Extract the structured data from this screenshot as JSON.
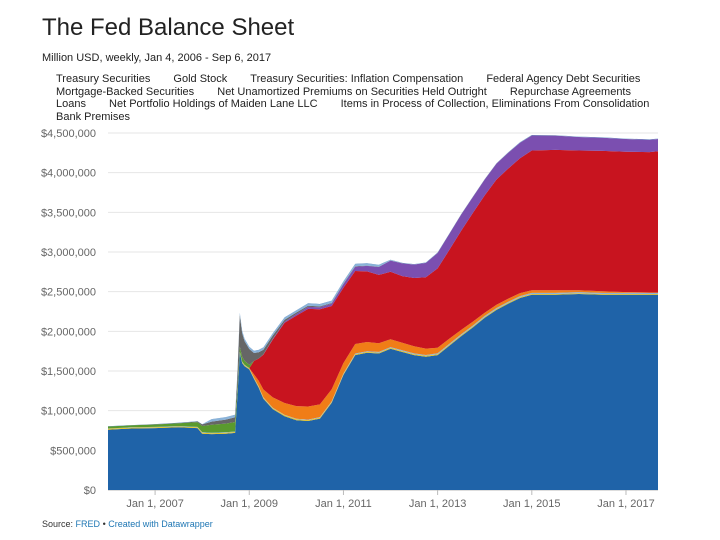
{
  "header": {
    "title": "The Fed Balance Sheet",
    "subtitle": "Million USD, weekly, Jan 4, 2006 - Sep 6, 2017"
  },
  "legend": {
    "rows": [
      [
        "Treasury Securities",
        "Gold Stock",
        "Treasury Securities: Inflation Compensation",
        "Federal Agency Debt Securities"
      ],
      [
        "Mortgage-Backed Securities",
        "Net Unamortized Premiums on Securities Held Outright",
        "Repurchase Agreements"
      ],
      [
        "Loans",
        "Net Portfolio Holdings of Maiden Lane LLC",
        "Items in Process of Collection, Eliminations From Consolidation"
      ],
      [
        "Bank Premises"
      ]
    ]
  },
  "footer": {
    "source_label": "Source:",
    "source_name": "FRED",
    "separator": "•",
    "credit": "Created with Datawrapper"
  },
  "colors": {
    "treasury": "#1f63a8",
    "gold": "#e8c21a",
    "agency": "#f07d17",
    "mbs": "#c8141f",
    "premiums": "#7b4fb0",
    "repo": "#5a9a2e",
    "loans": "#666666",
    "maiden_lane": "#8ab3d9",
    "grid": "#e6e6e6"
  },
  "chart_data": {
    "type": "area",
    "stacked": true,
    "title": "The Fed Balance Sheet",
    "subtitle": "Million USD, weekly, Jan 4, 2006 - Sep 6, 2017",
    "xlabel": "",
    "ylabel": "",
    "xlim": [
      2006.0,
      2017.68
    ],
    "ylim": [
      0,
      4500000
    ],
    "yticks": [
      0,
      500000,
      1000000,
      1500000,
      2000000,
      2500000,
      3000000,
      3500000,
      4000000,
      4500000
    ],
    "ytick_labels": [
      "$0",
      "$500,000",
      "$1,000,000",
      "$1,500,000",
      "$2,000,000",
      "$2,500,000",
      "$3,000,000",
      "$3,500,000",
      "$4,000,000",
      "$4,500,000"
    ],
    "xticks": [
      2007.0,
      2009.0,
      2011.0,
      2013.0,
      2015.0,
      2017.0
    ],
    "xtick_labels": [
      "Jan 1, 2007",
      "Jan 1, 2009",
      "Jan 1, 2011",
      "Jan 1, 2013",
      "Jan 1, 2015",
      "Jan 1, 2017"
    ],
    "grid": true,
    "legend_position": "top",
    "x": [
      2006.0,
      2006.5,
      2007.0,
      2007.5,
      2007.9,
      2008.0,
      2008.2,
      2008.5,
      2008.7,
      2008.75,
      2008.8,
      2008.85,
      2008.9,
      2009.0,
      2009.1,
      2009.2,
      2009.3,
      2009.5,
      2009.75,
      2010.0,
      2010.25,
      2010.5,
      2010.75,
      2011.0,
      2011.25,
      2011.5,
      2011.75,
      2012.0,
      2012.25,
      2012.5,
      2012.75,
      2013.0,
      2013.25,
      2013.5,
      2013.75,
      2014.0,
      2014.25,
      2014.5,
      2014.75,
      2015.0,
      2015.5,
      2016.0,
      2016.5,
      2017.0,
      2017.5,
      2017.68
    ],
    "series": [
      {
        "name": "Treasury Securities",
        "color_key": "treasury",
        "values": [
          760000,
          775000,
          780000,
          790000,
          780000,
          710000,
          705000,
          710000,
          720000,
          1200000,
          1730000,
          1600000,
          1560000,
          1520000,
          1400000,
          1290000,
          1150000,
          1020000,
          930000,
          880000,
          870000,
          900000,
          1100000,
          1450000,
          1700000,
          1730000,
          1720000,
          1780000,
          1740000,
          1700000,
          1680000,
          1700000,
          1820000,
          1940000,
          2050000,
          2170000,
          2270000,
          2350000,
          2420000,
          2460000,
          2460000,
          2470000,
          2460000,
          2460000,
          2460000,
          2460000
        ]
      },
      {
        "name": "Gold Stock",
        "color_key": "gold",
        "values": [
          11000,
          11000,
          11000,
          11000,
          11000,
          11000,
          11000,
          11000,
          11000,
          11000,
          11000,
          11000,
          11000,
          11000,
          11000,
          11000,
          11000,
          11000,
          11000,
          11000,
          11000,
          11000,
          11000,
          11000,
          11000,
          11000,
          11000,
          11000,
          11000,
          11000,
          11000,
          11000,
          11000,
          11000,
          11000,
          11000,
          11000,
          11000,
          11000,
          11000,
          11000,
          11000,
          11000,
          11000,
          11000,
          11000
        ]
      },
      {
        "name": "Treasury Securities: Inflation Compensation",
        "color_key": "maiden_lane",
        "values": [
          4000,
          4000,
          5000,
          5000,
          5000,
          6000,
          6000,
          6000,
          6000,
          6000,
          6000,
          6000,
          6000,
          6000,
          6000,
          6000,
          6000,
          6000,
          6000,
          7000,
          7000,
          8000,
          8000,
          8000,
          9000,
          9000,
          10000,
          10000,
          10000,
          11000,
          11000,
          12000,
          12000,
          12000,
          12000,
          13000,
          13000,
          13000,
          13000,
          13000,
          13000,
          13000,
          13000,
          13000,
          13000,
          13000
        ]
      },
      {
        "name": "Federal Agency Debt Securities",
        "color_key": "agency",
        "values": [
          0,
          0,
          0,
          0,
          0,
          0,
          0,
          0,
          0,
          0,
          0,
          0,
          0,
          0,
          40000,
          70000,
          100000,
          130000,
          150000,
          160000,
          165000,
          160000,
          150000,
          130000,
          120000,
          115000,
          110000,
          100000,
          95000,
          90000,
          80000,
          70000,
          65000,
          55000,
          50000,
          40000,
          40000,
          38000,
          38000,
          35000,
          33000,
          25000,
          20000,
          10000,
          5000,
          5000
        ]
      },
      {
        "name": "Mortgage-Backed Securities",
        "color_key": "mbs",
        "values": [
          0,
          0,
          0,
          0,
          0,
          0,
          0,
          0,
          0,
          0,
          0,
          0,
          0,
          0,
          170000,
          280000,
          440000,
          730000,
          1010000,
          1140000,
          1230000,
          1200000,
          1050000,
          950000,
          920000,
          890000,
          860000,
          850000,
          840000,
          860000,
          900000,
          1000000,
          1120000,
          1250000,
          1370000,
          1480000,
          1580000,
          1640000,
          1700000,
          1760000,
          1770000,
          1760000,
          1770000,
          1770000,
          1770000,
          1780000
        ]
      },
      {
        "name": "Net Unamortized Premiums on Securities Held Outright",
        "color_key": "premiums",
        "values": [
          0,
          0,
          0,
          0,
          0,
          0,
          0,
          0,
          0,
          0,
          0,
          0,
          0,
          0,
          0,
          0,
          2000,
          10000,
          15000,
          20000,
          25000,
          25000,
          30000,
          45000,
          55000,
          70000,
          100000,
          140000,
          160000,
          170000,
          180000,
          195000,
          200000,
          205000,
          200000,
          200000,
          200000,
          200000,
          195000,
          190000,
          180000,
          170000,
          165000,
          160000,
          155000,
          155000
        ]
      },
      {
        "name": "Repurchase Agreements",
        "color_key": "repo",
        "values": [
          25000,
          25000,
          30000,
          35000,
          60000,
          80000,
          100000,
          110000,
          120000,
          80000,
          60000,
          60000,
          50000,
          40000,
          0,
          0,
          0,
          0,
          0,
          0,
          0,
          0,
          0,
          0,
          0,
          0,
          0,
          0,
          0,
          0,
          0,
          0,
          0,
          0,
          0,
          0,
          0,
          0,
          0,
          0,
          0,
          0,
          0,
          0,
          0,
          0
        ]
      },
      {
        "name": "Loans",
        "color_key": "loans",
        "values": [
          1000,
          1000,
          2000,
          3000,
          8000,
          20000,
          40000,
          50000,
          60000,
          180000,
          400000,
          300000,
          250000,
          200000,
          100000,
          80000,
          60000,
          40000,
          25000,
          20000,
          15000,
          10000,
          8000,
          6000,
          5000,
          4000,
          3000,
          2000,
          2000,
          1000,
          1000,
          1000,
          1000,
          1000,
          1000,
          1000,
          1000,
          1000,
          1000,
          1000,
          1000,
          1000,
          1000,
          1000,
          1000,
          1000
        ]
      },
      {
        "name": "Net Portfolio Holdings of Maiden Lane LLC",
        "color_key": "maiden_lane",
        "values": [
          0,
          0,
          0,
          0,
          0,
          0,
          29000,
          29000,
          29000,
          29000,
          27000,
          27000,
          27000,
          27000,
          26000,
          26000,
          26000,
          26000,
          26000,
          26000,
          28000,
          28000,
          28000,
          27000,
          27000,
          26000,
          24000,
          7000,
          2000,
          1700,
          1600,
          1600,
          1600,
          1600,
          1600,
          1700,
          1700,
          1700,
          1700,
          1700,
          1700,
          1700,
          1700,
          1700,
          1700,
          1700
        ]
      },
      {
        "name": "Items in Process of Collection, Eliminations From Consolidation",
        "color_key": "treasury",
        "values": [
          500,
          500,
          500,
          500,
          500,
          500,
          500,
          500,
          500,
          500,
          500,
          500,
          500,
          500,
          500,
          500,
          500,
          500,
          500,
          500,
          500,
          500,
          500,
          500,
          500,
          500,
          500,
          500,
          500,
          500,
          500,
          500,
          500,
          500,
          500,
          500,
          500,
          500,
          500,
          500,
          500,
          500,
          500,
          500,
          500,
          500
        ]
      },
      {
        "name": "Bank Premises",
        "color_key": "treasury",
        "values": [
          2000,
          2000,
          2000,
          2000,
          2000,
          2000,
          2000,
          2000,
          2000,
          2000,
          2000,
          2000,
          2000,
          2000,
          2000,
          2000,
          2000,
          2000,
          2000,
          2000,
          2000,
          2000,
          2000,
          2000,
          2000,
          2000,
          2000,
          2000,
          2000,
          2000,
          2000,
          2000,
          2000,
          2000,
          2000,
          2000,
          2000,
          2000,
          2000,
          2000,
          2000,
          2000,
          2000,
          2000,
          2000,
          2000
        ]
      }
    ]
  }
}
